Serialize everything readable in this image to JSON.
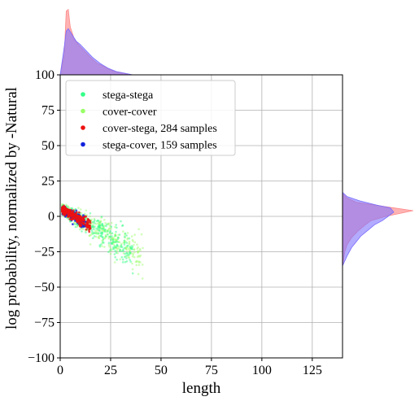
{
  "chart_data": {
    "type": "scatter",
    "xlabel": "length",
    "ylabel": "log probability, normalized by -Natural",
    "xlim": [
      0,
      140
    ],
    "ylim": [
      -100,
      100
    ],
    "xticks": [
      "0",
      "25",
      "50",
      "75",
      "100",
      "125"
    ],
    "yticks": [
      "100",
      "75",
      "50",
      "25",
      "0",
      "−25",
      "−50",
      "−75",
      "−100"
    ],
    "grid": true,
    "legend_position": "top-left",
    "series": [
      {
        "name": "stega-stega",
        "color": "#33ff88"
      },
      {
        "name": "cover-cover",
        "color": "#99ff66"
      },
      {
        "name": "cover-stega, 284 samples",
        "color": "#ee1111"
      },
      {
        "name": "stega-cover, 159 samples",
        "color": "#1122dd"
      }
    ],
    "marginal_x": {
      "red": [
        [
          0,
          0
        ],
        [
          2,
          25
        ],
        [
          3,
          80
        ],
        [
          4,
          82
        ],
        [
          5,
          60
        ],
        [
          7,
          45
        ],
        [
          9,
          38
        ],
        [
          12,
          30
        ],
        [
          15,
          22
        ],
        [
          18,
          15
        ],
        [
          22,
          10
        ],
        [
          26,
          5
        ],
        [
          30,
          3
        ],
        [
          34,
          0
        ]
      ],
      "blue": [
        [
          0,
          0
        ],
        [
          2,
          35
        ],
        [
          3,
          55
        ],
        [
          4,
          58
        ],
        [
          6,
          50
        ],
        [
          8,
          42
        ],
        [
          10,
          38
        ],
        [
          13,
          30
        ],
        [
          16,
          22
        ],
        [
          20,
          14
        ],
        [
          24,
          8
        ],
        [
          28,
          4
        ],
        [
          32,
          2
        ],
        [
          36,
          0
        ]
      ]
    },
    "marginal_y": {
      "red": [
        [
          -35,
          0
        ],
        [
          -25,
          2
        ],
        [
          -20,
          4
        ],
        [
          -15,
          8
        ],
        [
          -10,
          14
        ],
        [
          -6,
          20
        ],
        [
          -3,
          25
        ],
        [
          0,
          38
        ],
        [
          2,
          50
        ],
        [
          4,
          62
        ],
        [
          6,
          45
        ],
        [
          8,
          28
        ],
        [
          10,
          12
        ],
        [
          13,
          4
        ],
        [
          16,
          0
        ]
      ],
      "blue": [
        [
          -35,
          0
        ],
        [
          -28,
          4
        ],
        [
          -22,
          8
        ],
        [
          -18,
          12
        ],
        [
          -14,
          16
        ],
        [
          -10,
          22
        ],
        [
          -6,
          28
        ],
        [
          -3,
          35
        ],
        [
          0,
          40
        ],
        [
          3,
          45
        ],
        [
          6,
          42
        ],
        [
          8,
          30
        ],
        [
          11,
          15
        ],
        [
          14,
          4
        ],
        [
          17,
          0
        ]
      ]
    }
  }
}
